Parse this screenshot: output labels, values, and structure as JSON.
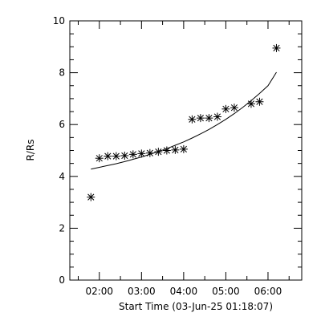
{
  "chart_data": {
    "type": "scatter",
    "xlabel": "Start Time (03-Jun-25 01:18:07)",
    "ylabel": "R/Rs",
    "x_axis": {
      "range": [
        "01:18",
        "06:48"
      ],
      "major_ticks": [
        {
          "time": "02:00",
          "label": "02:00"
        },
        {
          "time": "03:00",
          "label": "03:00"
        },
        {
          "time": "04:00",
          "label": "04:00"
        },
        {
          "time": "05:00",
          "label": "05:00"
        },
        {
          "time": "06:00",
          "label": "06:00"
        }
      ],
      "minor_ticks": [
        "01:30",
        "02:30",
        "03:30",
        "04:30",
        "05:30",
        "06:30"
      ]
    },
    "y_axis": {
      "range": [
        0,
        10
      ],
      "major_ticks": [
        0,
        2,
        4,
        6,
        8,
        10
      ],
      "minor_ticks": [
        0.5,
        1,
        1.5,
        2.5,
        3,
        3.5,
        4.5,
        5,
        5.5,
        6.5,
        7,
        7.5,
        8.5,
        9,
        9.5
      ]
    },
    "series": [
      {
        "type": "scatter",
        "marker": "asterisk",
        "points": [
          {
            "x": "01:48",
            "y": 3.2
          },
          {
            "x": "02:00",
            "y": 4.7
          },
          {
            "x": "02:12",
            "y": 4.78
          },
          {
            "x": "02:24",
            "y": 4.78
          },
          {
            "x": "02:36",
            "y": 4.8
          },
          {
            "x": "02:48",
            "y": 4.85
          },
          {
            "x": "03:00",
            "y": 4.88
          },
          {
            "x": "03:12",
            "y": 4.9
          },
          {
            "x": "03:24",
            "y": 4.95
          },
          {
            "x": "03:36",
            "y": 5.0
          },
          {
            "x": "03:48",
            "y": 5.02
          },
          {
            "x": "04:00",
            "y": 5.05
          },
          {
            "x": "04:12",
            "y": 6.2
          },
          {
            "x": "04:24",
            "y": 6.25
          },
          {
            "x": "04:36",
            "y": 6.25
          },
          {
            "x": "04:48",
            "y": 6.3
          },
          {
            "x": "05:00",
            "y": 6.6
          },
          {
            "x": "05:12",
            "y": 6.65
          },
          {
            "x": "05:36",
            "y": 6.8
          },
          {
            "x": "05:48",
            "y": 6.88
          },
          {
            "x": "06:12",
            "y": 8.95
          }
        ]
      },
      {
        "type": "line",
        "points": [
          {
            "x": "01:48",
            "y": 4.28
          },
          {
            "x": "02:00",
            "y": 4.35
          },
          {
            "x": "02:12",
            "y": 4.42
          },
          {
            "x": "02:24",
            "y": 4.49
          },
          {
            "x": "02:36",
            "y": 4.57
          },
          {
            "x": "02:48",
            "y": 4.66
          },
          {
            "x": "03:00",
            "y": 4.75
          },
          {
            "x": "03:12",
            "y": 4.85
          },
          {
            "x": "03:24",
            "y": 4.96
          },
          {
            "x": "03:36",
            "y": 5.07
          },
          {
            "x": "03:48",
            "y": 5.2
          },
          {
            "x": "04:00",
            "y": 5.33
          },
          {
            "x": "04:12",
            "y": 5.48
          },
          {
            "x": "04:24",
            "y": 5.64
          },
          {
            "x": "04:36",
            "y": 5.81
          },
          {
            "x": "04:48",
            "y": 6.0
          },
          {
            "x": "05:00",
            "y": 6.2
          },
          {
            "x": "05:12",
            "y": 6.42
          },
          {
            "x": "05:24",
            "y": 6.66
          },
          {
            "x": "05:36",
            "y": 6.92
          },
          {
            "x": "05:48",
            "y": 7.2
          },
          {
            "x": "06:00",
            "y": 7.5
          },
          {
            "x": "06:12",
            "y": 8.02
          }
        ]
      }
    ],
    "grid": false,
    "legend": "none"
  }
}
